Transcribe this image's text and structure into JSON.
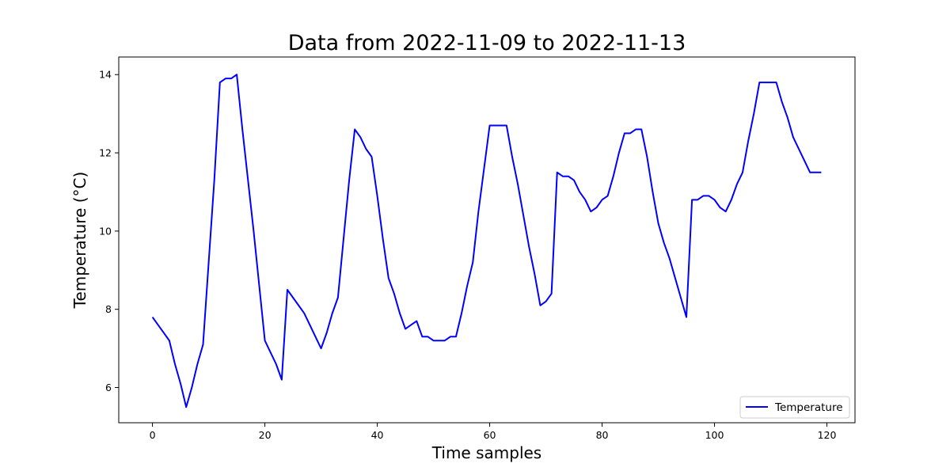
{
  "chart_data": {
    "type": "line",
    "title": "Data from 2022-11-09 to 2022-11-13",
    "xlabel": "Time samples",
    "ylabel": "Temperature (°C)",
    "xlim": [
      -6,
      125
    ],
    "ylim": [
      5.1,
      14.45
    ],
    "xticks": [
      0,
      20,
      40,
      60,
      80,
      100,
      120
    ],
    "yticks": [
      6,
      8,
      10,
      12,
      14
    ],
    "grid": false,
    "legend_position": "lower-right",
    "series": [
      {
        "name": "Temperature",
        "color": "#0000ff",
        "x": [
          0,
          1,
          2,
          3,
          4,
          5,
          6,
          7,
          8,
          9,
          10,
          11,
          12,
          13,
          14,
          15,
          16,
          17,
          18,
          19,
          20,
          21,
          22,
          23,
          24,
          25,
          26,
          27,
          28,
          29,
          30,
          31,
          32,
          33,
          34,
          35,
          36,
          37,
          38,
          39,
          40,
          41,
          42,
          43,
          44,
          45,
          46,
          47,
          48,
          49,
          50,
          51,
          52,
          53,
          54,
          55,
          56,
          57,
          58,
          59,
          60,
          61,
          62,
          63,
          64,
          65,
          66,
          67,
          68,
          69,
          70,
          71,
          72,
          73,
          74,
          75,
          76,
          77,
          78,
          79,
          80,
          81,
          82,
          83,
          84,
          85,
          86,
          87,
          88,
          89,
          90,
          91,
          92,
          93,
          94,
          95,
          96,
          97,
          98,
          99,
          100,
          101,
          102,
          103,
          104,
          105,
          106,
          107,
          108,
          109,
          110,
          111,
          112,
          113,
          114,
          115,
          116,
          117,
          118,
          119
        ],
        "values": [
          7.8,
          7.6,
          7.4,
          7.2,
          6.6,
          6.1,
          5.5,
          6.0,
          6.6,
          7.1,
          9.2,
          11.3,
          13.8,
          13.9,
          13.9,
          14.0,
          12.6,
          11.3,
          10.0,
          8.6,
          7.2,
          6.9,
          6.6,
          6.2,
          8.5,
          8.3,
          8.1,
          7.9,
          7.6,
          7.3,
          7.0,
          7.4,
          7.9,
          8.3,
          9.8,
          11.3,
          12.6,
          12.4,
          12.1,
          11.9,
          10.9,
          9.8,
          8.8,
          8.4,
          7.9,
          7.5,
          7.6,
          7.7,
          7.3,
          7.3,
          7.2,
          7.2,
          7.2,
          7.3,
          7.3,
          7.9,
          8.6,
          9.2,
          10.5,
          11.6,
          12.7,
          12.7,
          12.7,
          12.7,
          11.9,
          11.2,
          10.4,
          9.6,
          8.9,
          8.1,
          8.2,
          8.4,
          11.5,
          11.4,
          11.4,
          11.3,
          11.0,
          10.8,
          10.5,
          10.6,
          10.8,
          10.9,
          11.4,
          12.0,
          12.5,
          12.5,
          12.6,
          12.6,
          11.9,
          11.0,
          10.2,
          9.7,
          9.3,
          8.8,
          8.3,
          7.8,
          10.8,
          10.8,
          10.9,
          10.9,
          10.8,
          10.6,
          10.5,
          10.8,
          11.2,
          11.5,
          12.3,
          13.0,
          13.8,
          13.8,
          13.8,
          13.8,
          13.3,
          12.9,
          12.4,
          12.1,
          11.8,
          11.5,
          11.5,
          11.5
        ]
      }
    ]
  }
}
